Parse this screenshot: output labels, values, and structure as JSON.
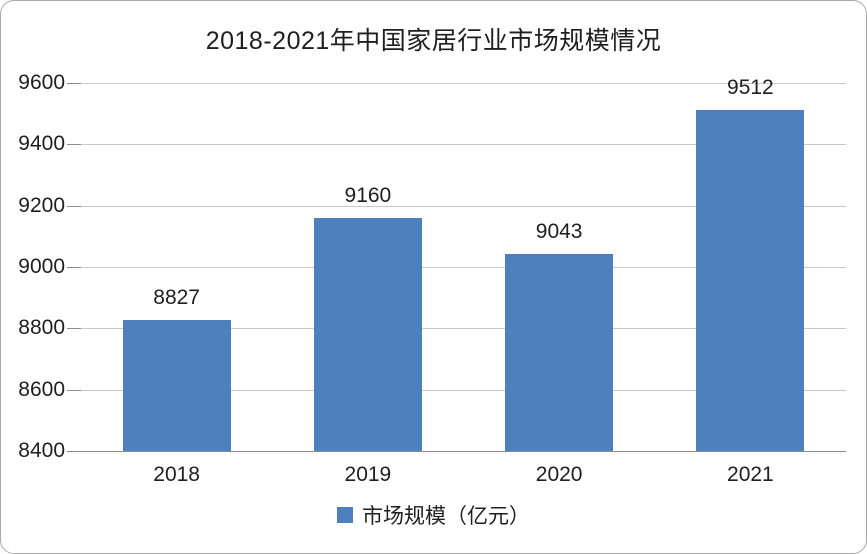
{
  "chart_data": {
    "type": "bar",
    "title": "2018-2021年中国家居行业市场规模情况",
    "categories": [
      "2018",
      "2019",
      "2020",
      "2021"
    ],
    "values": [
      8827,
      9160,
      9043,
      9512
    ],
    "series_name": "市场规模（亿元）",
    "xlabel": "",
    "ylabel": "",
    "ylim": [
      8400,
      9600
    ],
    "yticks": [
      8400,
      8600,
      8800,
      9000,
      9200,
      9400,
      9600
    ],
    "grid": true,
    "data_labels": true,
    "legend_position": "bottom"
  },
  "legend": {
    "label": "市场规模（亿元）"
  },
  "colors": {
    "bar": "#4d80bc",
    "gridline": "#c9c9c9",
    "axis": "#8c8c8c",
    "text": "#1f1f1f",
    "frame_border": "#a9a9a9"
  }
}
